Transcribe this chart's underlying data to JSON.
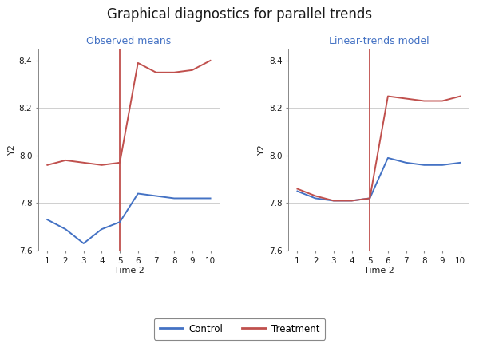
{
  "title": "Graphical diagnostics for parallel trends",
  "title_fontsize": 12,
  "panel1_title": "Observed means",
  "panel2_title": "Linear-trends model",
  "xlabel": "Time 2",
  "ylabel": "Y2",
  "x": [
    1,
    2,
    3,
    4,
    5,
    6,
    7,
    8,
    9,
    10
  ],
  "vline_x": 5,
  "ylim": [
    7.6,
    8.45
  ],
  "yticks": [
    7.6,
    7.8,
    8.0,
    8.2,
    8.4
  ],
  "xticks": [
    1,
    2,
    3,
    4,
    5,
    6,
    7,
    8,
    9,
    10
  ],
  "panel1_control": [
    7.73,
    7.69,
    7.63,
    7.69,
    7.72,
    7.84,
    7.83,
    7.82,
    7.82,
    7.82
  ],
  "panel1_treatment": [
    7.96,
    7.98,
    7.97,
    7.96,
    7.97,
    8.39,
    8.35,
    8.35,
    8.36,
    8.4
  ],
  "panel2_control": [
    7.85,
    7.82,
    7.81,
    7.81,
    7.82,
    7.99,
    7.97,
    7.96,
    7.96,
    7.97
  ],
  "panel2_treatment": [
    7.86,
    7.83,
    7.81,
    7.81,
    7.82,
    8.25,
    8.24,
    8.23,
    8.23,
    8.25
  ],
  "control_color": "#4472C4",
  "treatment_color": "#C0504D",
  "vline_color": "#C0504D",
  "bg_color": "#FFFFFF",
  "grid_color": "#C8C8C8",
  "text_color": "#1A1A1A",
  "subtitle_color": "#4472C4",
  "label_fontsize": 8,
  "tick_fontsize": 7.5,
  "subtitle_fontsize": 9,
  "legend_fontsize": 8.5
}
